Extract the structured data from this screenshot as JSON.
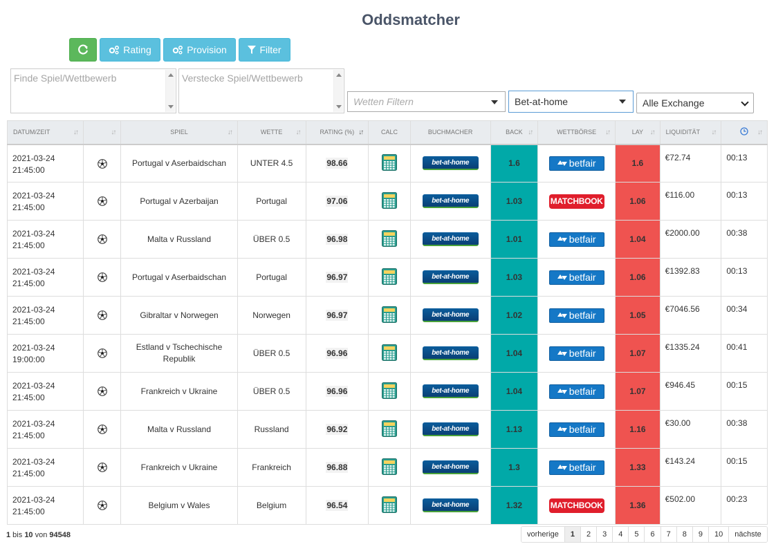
{
  "title": "Oddsmatcher",
  "toolbar": {
    "refresh_icon": "refresh-icon",
    "rating_label": "Rating",
    "provision_label": "Provision",
    "filter_label": "Filter"
  },
  "filters": {
    "find_placeholder": "Finde Spiel/Wettbewerb",
    "hide_placeholder": "Verstecke Spiel/Wettbewerb",
    "bet_filter_placeholder": "Wetten Filtern",
    "bookmaker_value": "Bet-at-home",
    "exchange_value": "Alle Exchange"
  },
  "columns": [
    "DATUM/ZEIT",
    "",
    "SPIEL",
    "WETTE",
    "RATING (%)",
    "CALC",
    "BUCHMACHER",
    "BACK",
    "WETTBÖRSE",
    "LAY",
    "LIQUIDITÄT",
    "clock-icon"
  ],
  "logos": {
    "bookmaker": "bet-at-home",
    "betfair": "betfair",
    "matchbook": "MATCHBOOK"
  },
  "rows": [
    {
      "date": "2021-03-24",
      "time": "21:45:00",
      "game": "Portugal v Aserbaidschan",
      "bet": "UNTER 4.5",
      "rating": "98.66",
      "back": "1.6",
      "exchange": "betfair",
      "lay": "1.6",
      "liquidity": "€72.74",
      "countdown": "00:13"
    },
    {
      "date": "2021-03-24",
      "time": "21:45:00",
      "game": "Portugal v Azerbaijan",
      "bet": "Portugal",
      "rating": "97.06",
      "back": "1.03",
      "exchange": "matchbook",
      "lay": "1.06",
      "liquidity": "€116.00",
      "countdown": "00:13"
    },
    {
      "date": "2021-03-24",
      "time": "21:45:00",
      "game": "Malta v Russland",
      "bet": "ÜBER 0.5",
      "rating": "96.98",
      "back": "1.01",
      "exchange": "betfair",
      "lay": "1.04",
      "liquidity": "€2000.00",
      "countdown": "00:38"
    },
    {
      "date": "2021-03-24",
      "time": "21:45:00",
      "game": "Portugal v Aserbaidschan",
      "bet": "Portugal",
      "rating": "96.97",
      "back": "1.03",
      "exchange": "betfair",
      "lay": "1.06",
      "liquidity": "€1392.83",
      "countdown": "00:13"
    },
    {
      "date": "2021-03-24",
      "time": "21:45:00",
      "game": "Gibraltar v Norwegen",
      "bet": "Norwegen",
      "rating": "96.97",
      "back": "1.02",
      "exchange": "betfair",
      "lay": "1.05",
      "liquidity": "€7046.56",
      "countdown": "00:34"
    },
    {
      "date": "2021-03-24",
      "time": "19:00:00",
      "game": "Estland v Tschechische Republik",
      "bet": "ÜBER 0.5",
      "rating": "96.96",
      "back": "1.04",
      "exchange": "betfair",
      "lay": "1.07",
      "liquidity": "€1335.24",
      "countdown": "00:41"
    },
    {
      "date": "2021-03-24",
      "time": "21:45:00",
      "game": "Frankreich v Ukraine",
      "bet": "ÜBER 0.5",
      "rating": "96.96",
      "back": "1.04",
      "exchange": "betfair",
      "lay": "1.07",
      "liquidity": "€946.45",
      "countdown": "00:15"
    },
    {
      "date": "2021-03-24",
      "time": "21:45:00",
      "game": "Malta v Russland",
      "bet": "Russland",
      "rating": "96.92",
      "back": "1.13",
      "exchange": "betfair",
      "lay": "1.16",
      "liquidity": "€30.00",
      "countdown": "00:38"
    },
    {
      "date": "2021-03-24",
      "time": "21:45:00",
      "game": "Frankreich v Ukraine",
      "bet": "Frankreich",
      "rating": "96.88",
      "back": "1.3",
      "exchange": "betfair",
      "lay": "1.33",
      "liquidity": "€143.24",
      "countdown": "00:15"
    },
    {
      "date": "2021-03-24",
      "time": "21:45:00",
      "game": "Belgium v Wales",
      "bet": "Belgium",
      "rating": "96.54",
      "back": "1.32",
      "exchange": "matchbook",
      "lay": "1.36",
      "liquidity": "€502.00",
      "countdown": "00:23"
    }
  ],
  "footer": {
    "from": "1",
    "sep1": " bis ",
    "to": "10",
    "sep2": " von ",
    "total": "94548"
  },
  "pagination": {
    "prev": "vorherige",
    "pages": [
      "1",
      "2",
      "3",
      "4",
      "5",
      "6",
      "7",
      "8",
      "9",
      "10"
    ],
    "next": "nächste",
    "active": "1"
  },
  "colors": {
    "back": "#01a9a8",
    "lay": "#ef5350",
    "refresh_button": "#5cb85c",
    "info_button": "#5bc0de"
  }
}
